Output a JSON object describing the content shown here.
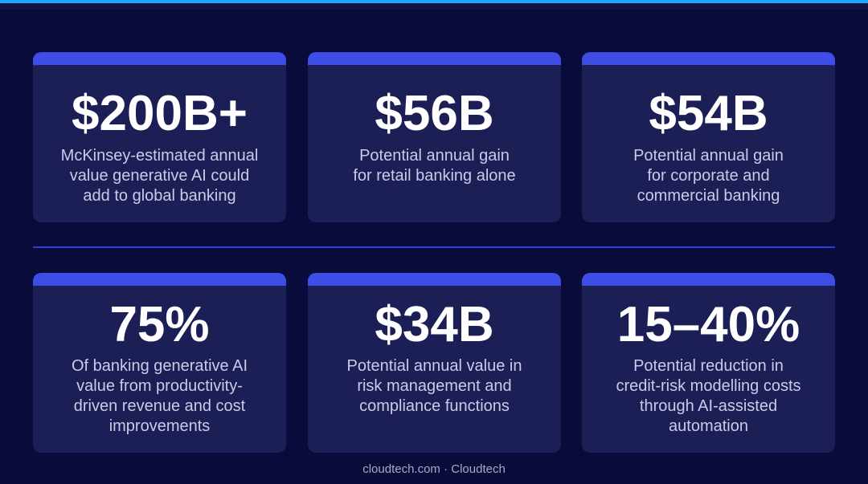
{
  "stats": [
    {
      "value": "$200B+",
      "description": "McKinsey-estimated annual\nvalue generative AI could\nadd to global banking"
    },
    {
      "value": "$56B",
      "description": "Potential annual gain\nfor retail banking alone"
    },
    {
      "value": "$54B",
      "description": "Potential annual gain\nfor corporate and\ncommercial banking"
    },
    {
      "value": "75%",
      "description": "Of banking generative AI\nvalue from productivity-\ndriven revenue and cost\nimprovements"
    },
    {
      "value": "$34B",
      "description": "Potential annual value in\nrisk management and\ncompliance functions"
    },
    {
      "value": "15–40%",
      "description": "Potential reduction in\ncredit-risk modelling costs\nthrough AI-assisted\nautomation"
    }
  ],
  "footer": {
    "text": "cloudtech.com · Cloudtech"
  },
  "colors": {
    "background": "#090b3a",
    "card": "#1b1f55",
    "accent": "#3d4de6",
    "top_bar": "#1ea7ff"
  }
}
